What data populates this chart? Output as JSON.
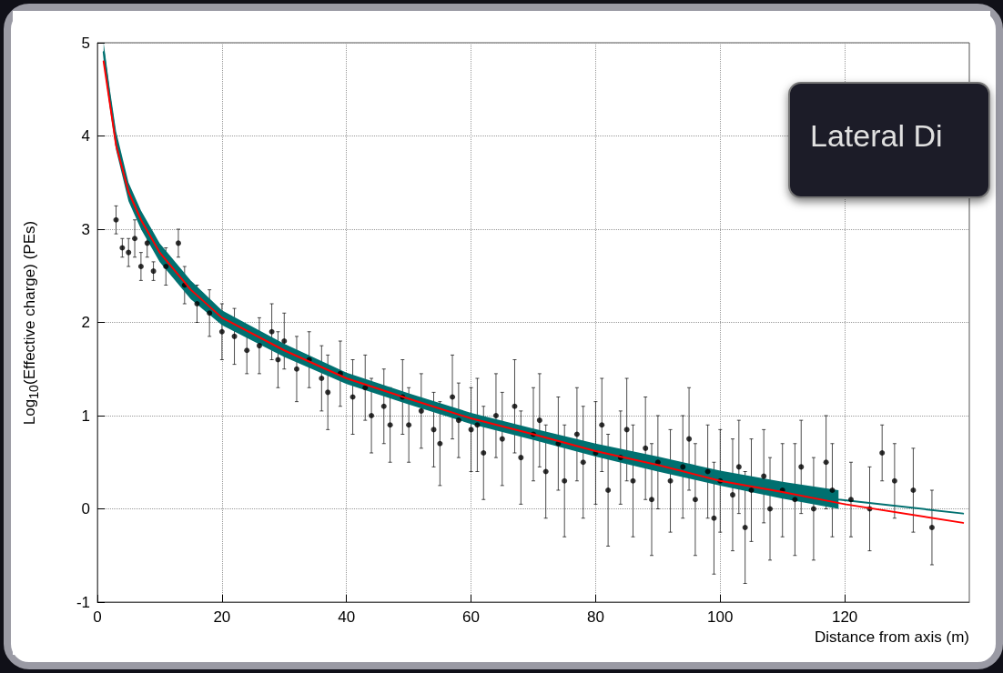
{
  "chart_data": {
    "type": "scatter",
    "xlabel": "Distance from axis (m)",
    "ylabel": "Log$_{10}$(Effective charge) (PEs)",
    "annotations": [
      "Lateral Di"
    ],
    "xlim": [
      0,
      140
    ],
    "xticks": [
      0,
      20,
      40,
      60,
      80,
      100,
      120
    ],
    "ylim": [
      -1,
      5
    ],
    "yticks": [
      -1,
      0,
      1,
      2,
      3,
      4,
      5
    ],
    "grid": true,
    "series": [
      {
        "marker": "circle",
        "color": "#000000",
        "x": [
          3,
          4,
          5,
          6,
          7,
          8,
          9,
          11,
          13,
          14,
          16,
          18,
          20,
          22,
          24,
          26,
          28,
          29,
          30,
          32,
          34,
          36,
          37,
          39,
          41,
          43,
          44,
          46,
          47,
          49,
          50,
          52,
          54,
          55,
          57,
          58,
          60,
          61,
          62,
          64,
          65,
          67,
          68,
          70,
          71,
          72,
          74,
          75,
          77,
          78,
          80,
          81,
          82,
          84,
          85,
          86,
          88,
          89,
          90,
          92,
          94,
          95,
          96,
          98,
          99,
          100,
          102,
          103,
          104,
          105,
          107,
          108,
          110,
          112,
          113,
          115,
          117,
          118,
          121,
          124,
          126,
          128,
          131,
          134
        ],
        "values": [
          3.1,
          2.8,
          2.75,
          2.9,
          2.6,
          2.85,
          2.55,
          2.6,
          2.85,
          2.4,
          2.2,
          2.1,
          1.9,
          1.85,
          1.7,
          1.75,
          1.9,
          1.6,
          1.8,
          1.5,
          1.6,
          1.4,
          1.25,
          1.45,
          1.2,
          1.3,
          1.0,
          1.1,
          0.9,
          1.2,
          0.9,
          1.05,
          0.85,
          0.7,
          1.2,
          0.95,
          0.85,
          0.9,
          0.6,
          1.0,
          0.75,
          1.1,
          0.55,
          0.8,
          0.95,
          0.4,
          0.7,
          0.3,
          0.8,
          0.5,
          0.6,
          0.9,
          0.2,
          0.55,
          0.85,
          0.3,
          0.65,
          0.1,
          0.5,
          0.3,
          0.45,
          0.75,
          0.1,
          0.4,
          -0.1,
          0.3,
          0.15,
          0.45,
          -0.2,
          0.2,
          0.35,
          0.0,
          0.2,
          0.1,
          0.45,
          0.0,
          0.5,
          0.2,
          0.1,
          0.0,
          0.6,
          0.3,
          0.2,
          -0.2
        ],
        "errors": [
          0.15,
          0.1,
          0.15,
          0.2,
          0.15,
          0.15,
          0.1,
          0.2,
          0.15,
          0.2,
          0.2,
          0.25,
          0.3,
          0.3,
          0.25,
          0.3,
          0.3,
          0.3,
          0.3,
          0.35,
          0.3,
          0.35,
          0.4,
          0.35,
          0.4,
          0.35,
          0.4,
          0.4,
          0.4,
          0.4,
          0.4,
          0.4,
          0.4,
          0.45,
          0.45,
          0.4,
          0.45,
          0.5,
          0.5,
          0.45,
          0.5,
          0.5,
          0.5,
          0.5,
          0.5,
          0.5,
          0.5,
          0.6,
          0.5,
          0.6,
          0.55,
          0.5,
          0.6,
          0.5,
          0.55,
          0.6,
          0.55,
          0.6,
          0.5,
          0.55,
          0.55,
          0.55,
          0.6,
          0.5,
          0.6,
          0.55,
          0.6,
          0.5,
          0.6,
          0.55,
          0.5,
          0.55,
          0.5,
          0.6,
          0.5,
          0.55,
          0.5,
          0.5,
          0.4,
          0.45,
          0.3,
          0.4,
          0.45,
          0.4
        ]
      },
      {
        "type": "line",
        "color": "#007070",
        "x": [
          1,
          2,
          3,
          5,
          7,
          10,
          15,
          20,
          30,
          40,
          50,
          60,
          70,
          80,
          90,
          100,
          110,
          119,
          139
        ],
        "values": [
          4.9,
          4.4,
          3.95,
          3.4,
          3.1,
          2.75,
          2.35,
          2.05,
          1.7,
          1.4,
          1.18,
          0.97,
          0.8,
          0.63,
          0.48,
          0.33,
          0.2,
          0.1,
          -0.05
        ],
        "lower": [
          4.8,
          4.3,
          3.85,
          3.3,
          3.0,
          2.65,
          2.25,
          1.97,
          1.63,
          1.34,
          1.12,
          0.91,
          0.74,
          0.56,
          0.4,
          0.25,
          0.11,
          0.0,
          null
        ],
        "upper": [
          5.0,
          4.5,
          4.05,
          3.5,
          3.2,
          2.85,
          2.45,
          2.13,
          1.77,
          1.46,
          1.24,
          1.03,
          0.86,
          0.7,
          0.56,
          0.41,
          0.29,
          0.2,
          null
        ]
      },
      {
        "type": "line",
        "color": "#ff0000",
        "x": [
          1,
          2,
          3,
          5,
          7,
          10,
          15,
          20,
          30,
          40,
          50,
          60,
          70,
          80,
          90,
          100,
          110,
          120,
          139
        ],
        "values": [
          4.8,
          4.35,
          3.9,
          3.4,
          3.1,
          2.75,
          2.35,
          2.05,
          1.7,
          1.4,
          1.18,
          0.97,
          0.8,
          0.62,
          0.47,
          0.3,
          0.18,
          0.05,
          -0.15
        ]
      }
    ]
  }
}
